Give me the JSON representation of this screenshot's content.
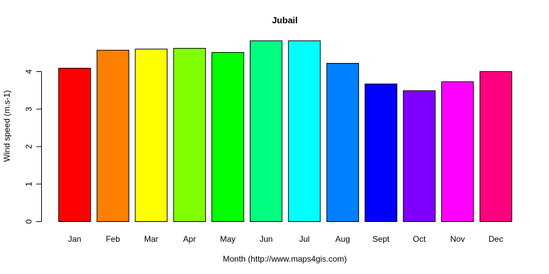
{
  "chart_data": {
    "type": "bar",
    "title": "Jubail",
    "xlabel": "Month (http://www.maps4gis.com)",
    "ylabel": "Wind speed (m.s-1)",
    "categories": [
      "Jan",
      "Feb",
      "Mar",
      "Apr",
      "May",
      "Jun",
      "Jul",
      "Aug",
      "Sept",
      "Oct",
      "Nov",
      "Dec"
    ],
    "values": [
      4.09,
      4.57,
      4.6,
      4.62,
      4.51,
      4.82,
      4.82,
      4.22,
      3.67,
      3.49,
      3.73,
      4.0
    ],
    "colors": [
      "#FF0000",
      "#FF8000",
      "#FFFF00",
      "#80FF00",
      "#00FF00",
      "#00FF80",
      "#00FFFF",
      "#0080FF",
      "#0000FF",
      "#8000FF",
      "#FF00FF",
      "#FF0080"
    ],
    "yticks": [
      0,
      1,
      2,
      3,
      4
    ],
    "ylim": [
      0,
      5
    ],
    "grid": false,
    "legend": null
  }
}
